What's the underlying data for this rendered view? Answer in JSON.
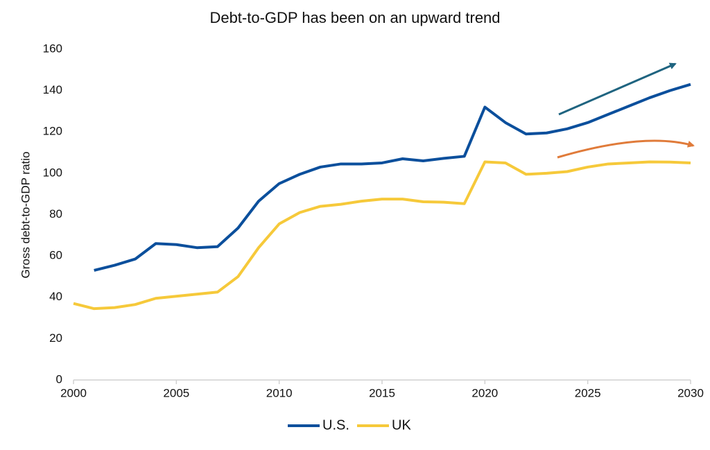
{
  "chart_data": {
    "type": "line",
    "title": "Debt-to-GDP has been on an upward trend",
    "y_label": "Gross debt-to-GDP ratio",
    "x": [
      2000,
      2001,
      2002,
      2003,
      2004,
      2005,
      2006,
      2007,
      2008,
      2009,
      2010,
      2011,
      2012,
      2013,
      2014,
      2015,
      2016,
      2017,
      2018,
      2019,
      2020,
      2021,
      2022,
      2023,
      2024,
      2025,
      2026,
      2027,
      2028,
      2029,
      2030
    ],
    "series": [
      {
        "name": "U.S.",
        "color": "#0b4f9c",
        "values": [
          null,
          53,
          55.5,
          58.5,
          66,
          65.5,
          64,
          64.5,
          73.5,
          86.5,
          95,
          99.5,
          103,
          104.5,
          104.5,
          105,
          107,
          106,
          107.2,
          108.2,
          132,
          124.5,
          119,
          119.5,
          121.5,
          124.5,
          128.5,
          132.5,
          136.5,
          140,
          143
        ]
      },
      {
        "name": "UK",
        "color": "#f6c93a",
        "values": [
          37,
          34.5,
          35,
          36.5,
          39.5,
          40.5,
          41.5,
          42.5,
          50,
          64,
          75.5,
          81,
          84,
          85,
          86.5,
          87.5,
          87.5,
          86.2,
          86,
          85.3,
          105.5,
          105,
          99.5,
          100,
          100.8,
          103,
          104.5,
          105,
          105.5,
          105.4,
          105
        ]
      }
    ],
    "xlim": [
      2000,
      2030
    ],
    "xticks": [
      2000,
      2005,
      2010,
      2015,
      2020,
      2025,
      2030
    ],
    "ylim": [
      0,
      160
    ],
    "yticks": [
      0,
      20,
      40,
      60,
      80,
      100,
      120,
      140,
      160
    ]
  }
}
